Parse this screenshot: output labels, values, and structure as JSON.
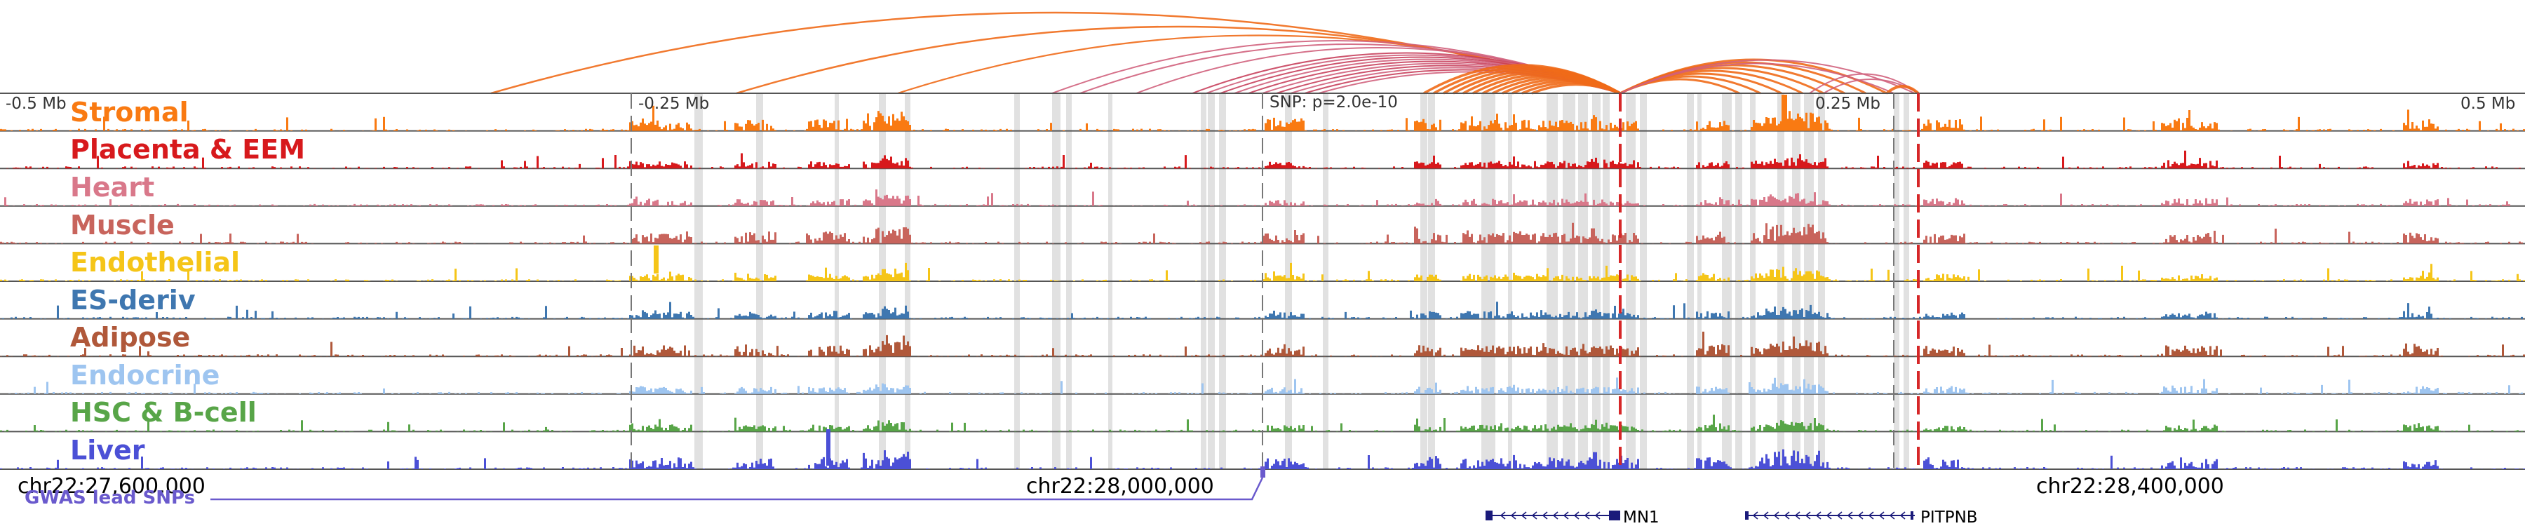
{
  "axis": {
    "ticks": [
      "-0.5 Mb",
      "-0.25 Mb",
      "0.25 Mb",
      "0.5 Mb"
    ],
    "snp_label": "SNP: p=2.0e-10"
  },
  "tracks": [
    {
      "label": "Stromal",
      "color": "#F97A12"
    },
    {
      "label": "Placenta & EEM",
      "color": "#D7191C"
    },
    {
      "label": "Heart",
      "color": "#D9788A"
    },
    {
      "label": "Muscle",
      "color": "#C8645C"
    },
    {
      "label": "Endothelial",
      "color": "#F5C518"
    },
    {
      "label": "ES-deriv",
      "color": "#3F77B0"
    },
    {
      "label": "Adipose",
      "color": "#B0583A"
    },
    {
      "label": "Endocrine",
      "color": "#9EC5F0"
    },
    {
      "label": "HSC & B-cell",
      "color": "#58A548"
    },
    {
      "label": "Liver",
      "color": "#4B50D6"
    }
  ],
  "coords": [
    "chr22:27,600,000",
    "chr22:28,000,000",
    "chr22:28,400,000"
  ],
  "gwas_label": "GWAS lead SNPs",
  "gwas_color": "#6A5ACD",
  "genes": [
    {
      "name": "MN1",
      "icon": "gene-model-minus-strand"
    },
    {
      "name": "PITPNB",
      "icon": "gene-model-minus-strand"
    }
  ],
  "colors": {
    "dashed_boundary": "#D62728",
    "highlight": "#C8C8C8",
    "gene": "#1A1A7A"
  }
}
